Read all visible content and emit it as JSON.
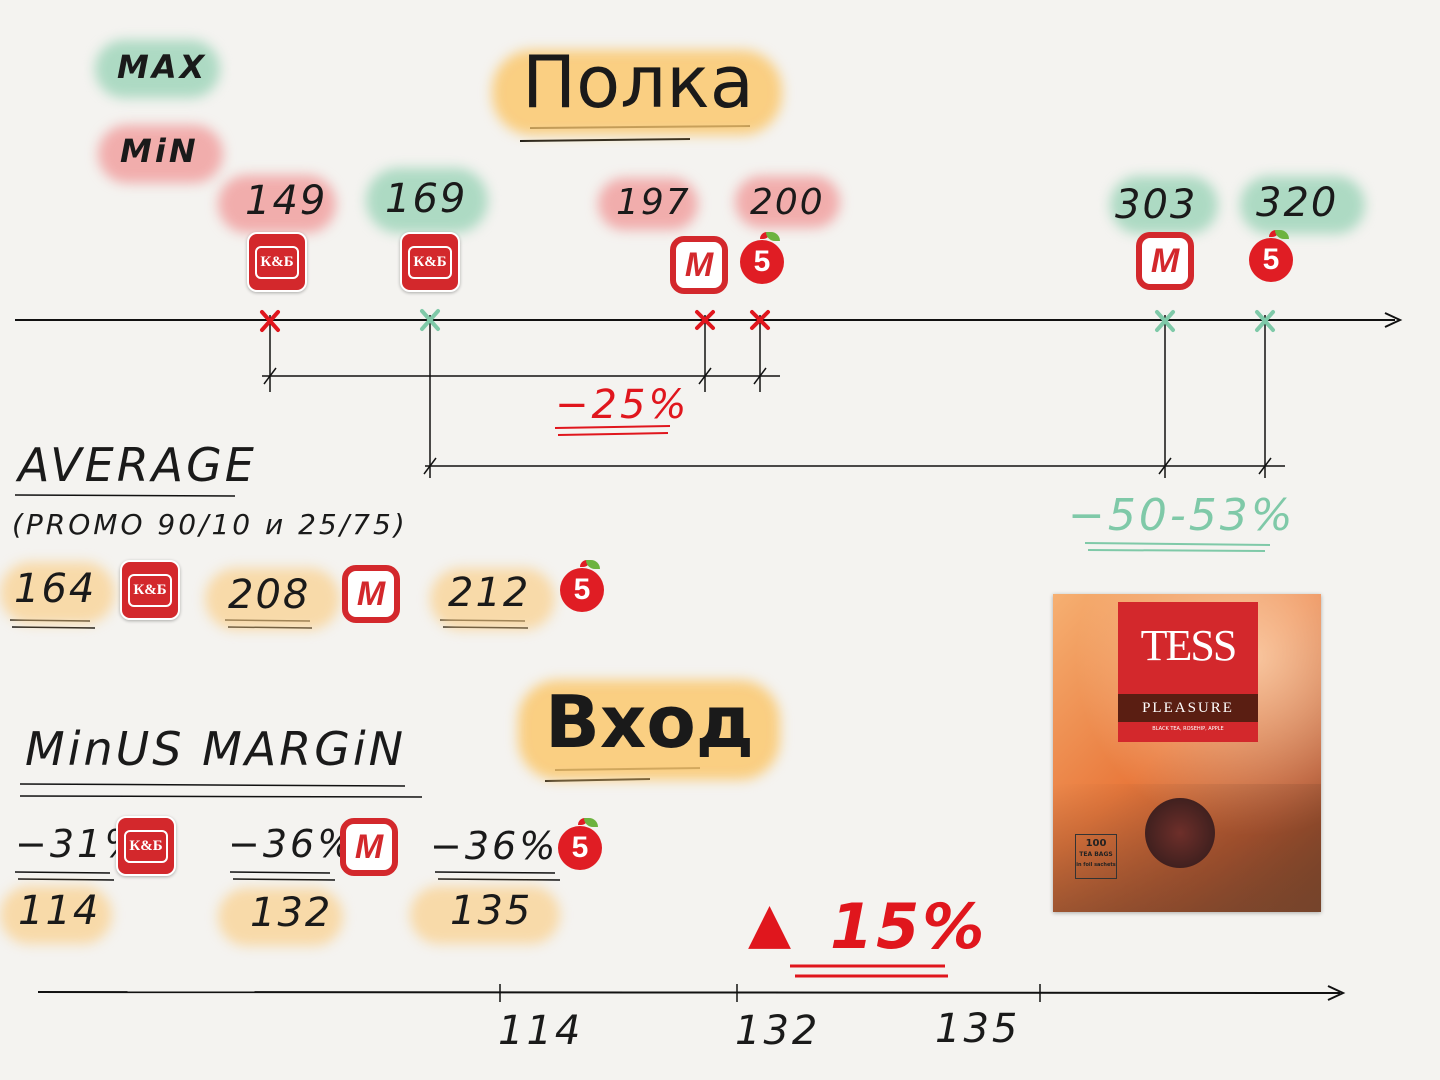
{
  "legend": {
    "max_label": "MAX",
    "min_label": "MiN"
  },
  "titles": {
    "shelf": "Полка",
    "entry": "Вход"
  },
  "shelf_prices": [
    {
      "value": "149",
      "type": "min",
      "store": "К&Б"
    },
    {
      "value": "169",
      "type": "max",
      "store": "К&Б"
    },
    {
      "value": "197",
      "type": "min",
      "store": "M"
    },
    {
      "value": "200",
      "type": "min",
      "store": "5"
    },
    {
      "value": "303",
      "type": "max",
      "store": "M"
    },
    {
      "value": "320",
      "type": "max",
      "store": "5"
    }
  ],
  "diffs": {
    "min_diff": "−25%",
    "max_diff": "−50-53%"
  },
  "average": {
    "title": "AVERAGE",
    "subtitle": "(PROMO 90/10 и 25/75)",
    "values": [
      {
        "value": "164",
        "store": "К&Б"
      },
      {
        "value": "208",
        "store": "M"
      },
      {
        "value": "212",
        "store": "5"
      }
    ]
  },
  "minus_margin": {
    "title": "MinUS MARGiN",
    "items": [
      {
        "pct": "−31%",
        "price": "114",
        "store": "К&Б"
      },
      {
        "pct": "−36%",
        "price": "132",
        "store": "M"
      },
      {
        "pct": "−36%",
        "price": "135",
        "store": "5"
      }
    ]
  },
  "delta": {
    "symbol": "▲",
    "value": "15%"
  },
  "entry_axis": {
    "ticks": [
      "114",
      "132",
      "135"
    ]
  },
  "product": {
    "brand": "TESS",
    "name": "PLEASURE",
    "desc": "BLACK TEA, ROSEHIP, APPLE",
    "count": "100",
    "count_label": "TEA BAGS",
    "pack_note": "in foil sachets"
  },
  "colors": {
    "max": "#96d2b4",
    "min": "#f09696",
    "title_bg": "#facb6e",
    "accent_red": "#e0161d",
    "accent_green": "#7fc9a8"
  }
}
